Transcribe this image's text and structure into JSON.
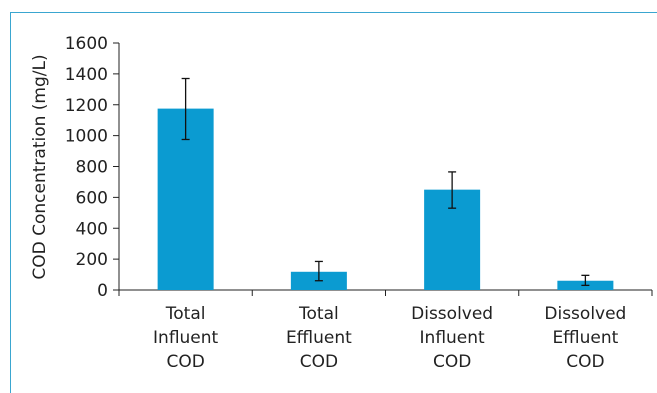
{
  "chart_data": {
    "type": "bar",
    "categories": [
      [
        "Total",
        "Influent",
        "COD"
      ],
      [
        "Total",
        "Effluent",
        "COD"
      ],
      [
        "Dissolved",
        "Influent",
        "COD"
      ],
      [
        "Dissolved",
        "Effluent",
        "COD"
      ]
    ],
    "values": [
      1175,
      118,
      650,
      60
    ],
    "error": [
      [
        975,
        1370
      ],
      [
        60,
        185
      ],
      [
        530,
        765
      ],
      [
        30,
        95
      ]
    ],
    "ylabel": "COD Concentration (mg/L)",
    "xlabel": "",
    "title": "",
    "ylim": [
      0,
      1600
    ],
    "yticks": [
      0,
      200,
      400,
      600,
      800,
      1000,
      1200,
      1400,
      1600
    ],
    "grid": false,
    "colors": {
      "bar": "#0b9bd1",
      "frame": "#3aa6d0",
      "axis": "#222222"
    }
  }
}
